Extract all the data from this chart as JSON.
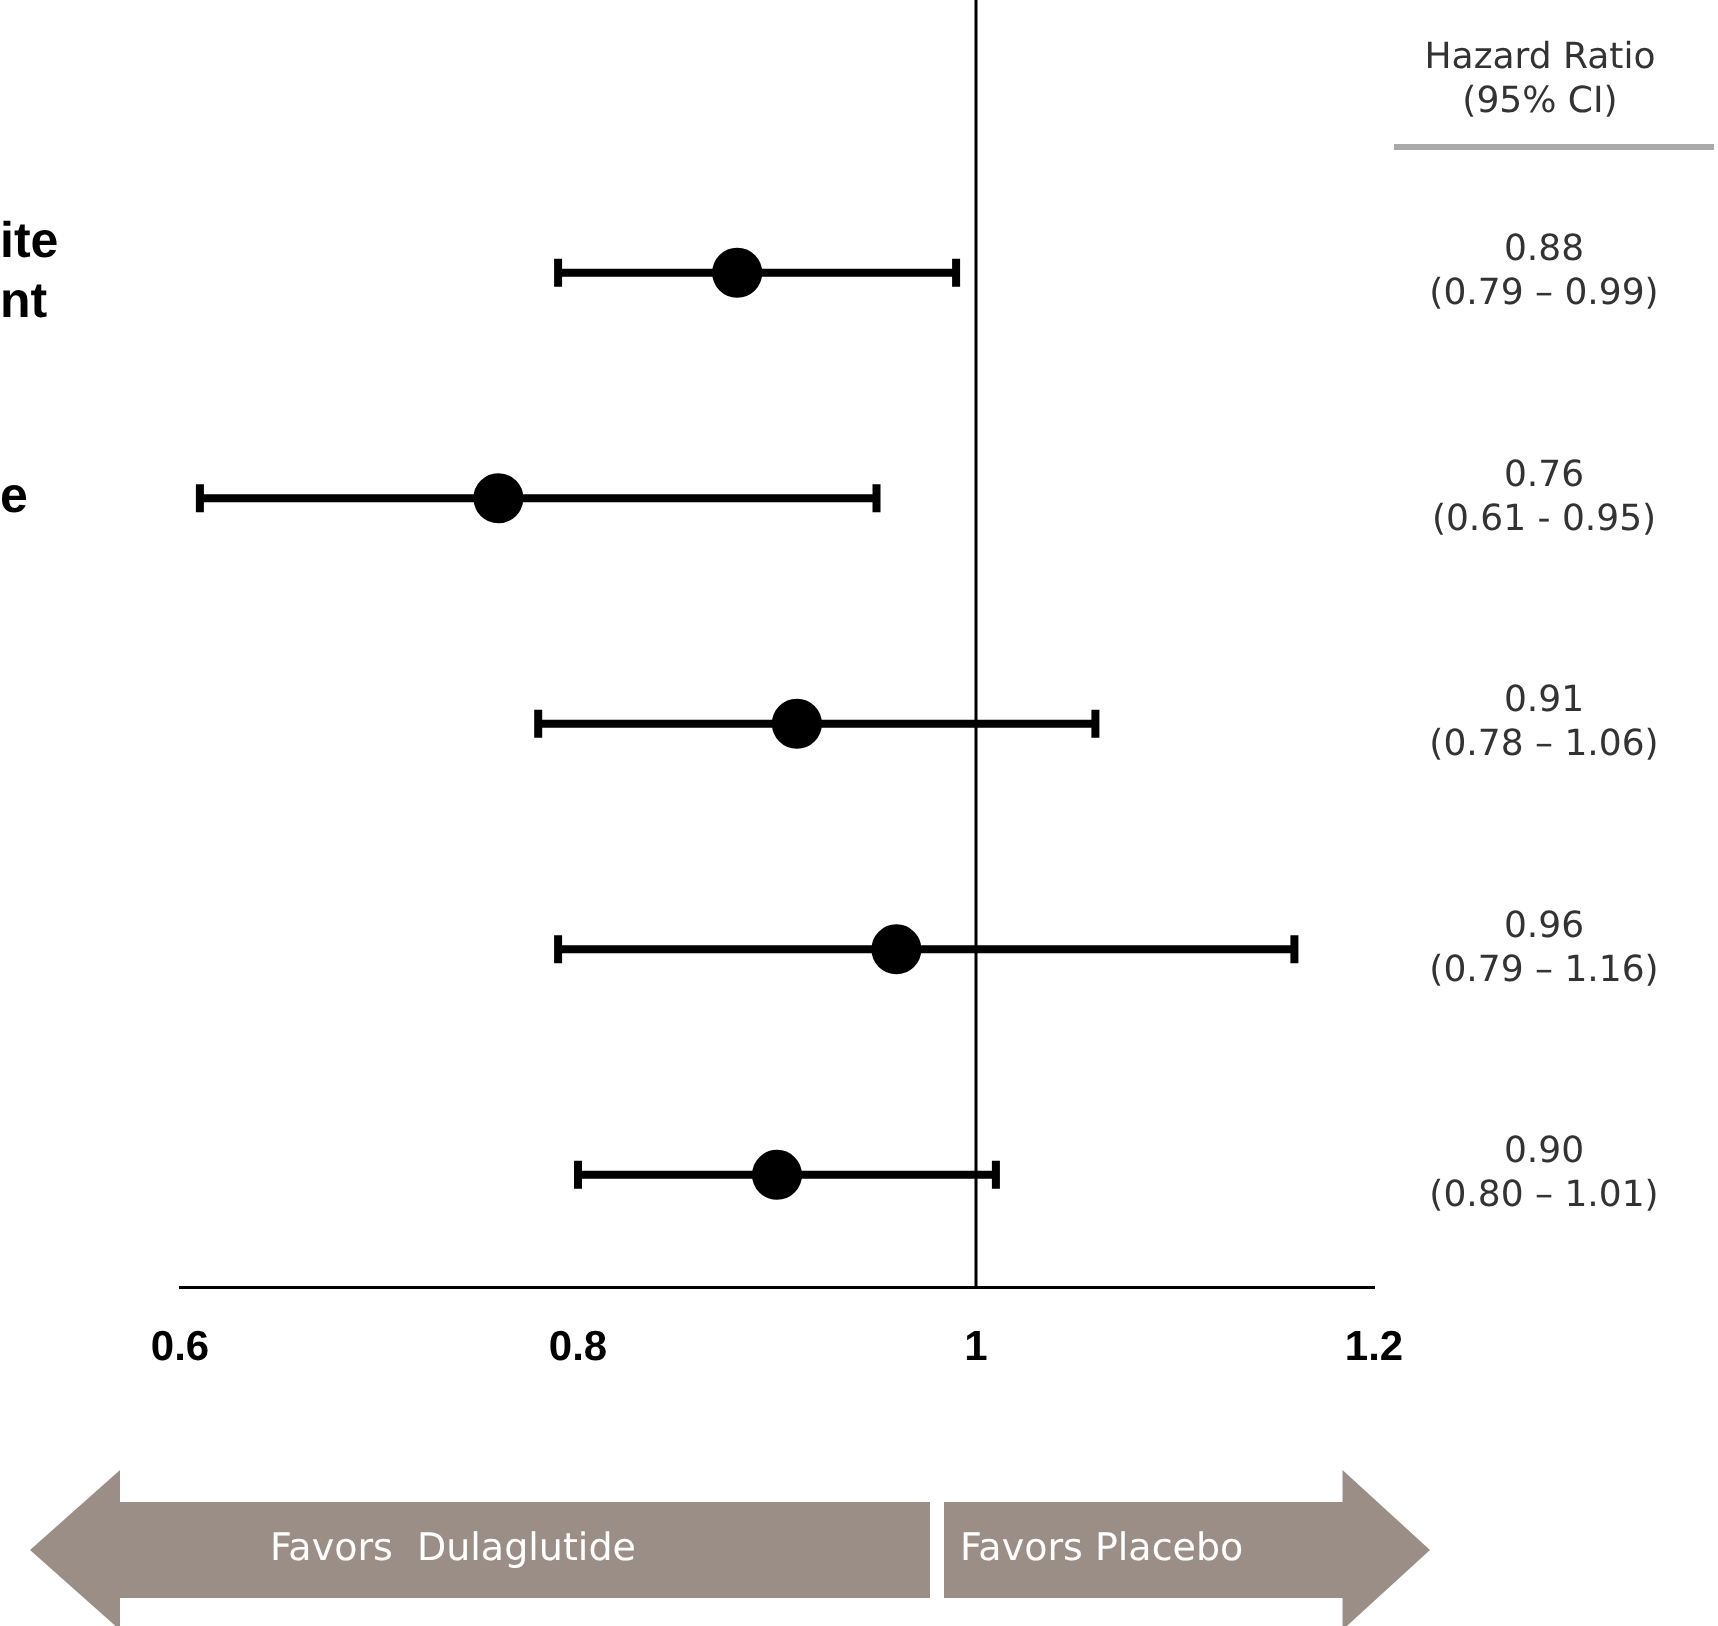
{
  "chart_data": {
    "type": "scatter",
    "orientation": "horizontal",
    "marker": "circle",
    "categories": [
      "ite\nnt",
      "e",
      null,
      null,
      null
    ],
    "series": [
      {
        "color": "#000000",
        "values": [
          0.88,
          0.76,
          0.91,
          0.96,
          0.9
        ],
        "errors": [
          [
            0.79,
            0.99
          ],
          [
            0.61,
            0.95
          ],
          [
            0.78,
            1.06
          ],
          [
            0.79,
            1.16
          ],
          [
            0.8,
            1.01
          ]
        ],
        "value_labels": [
          "0.88\n(0.79 – 0.99)",
          "0.76\n(0.61 - 0.95)",
          "0.91\n(0.78 – 1.06)",
          "0.96\n(0.79 – 1.16)",
          "0.90\n(0.80 – 1.01)"
        ]
      }
    ],
    "xlim": [
      0.6,
      1.2
    ],
    "xticks": [
      0.6,
      0.8,
      1,
      1.2
    ],
    "ref_lines": [
      {
        "axis": "x",
        "value": 1,
        "color": "#000000"
      }
    ],
    "annotations": [
      "Hazard Ratio\n(95% CI)",
      "Favors  Dulaglutide",
      "Favors Placebo"
    ],
    "legend": false,
    "grid": false
  }
}
